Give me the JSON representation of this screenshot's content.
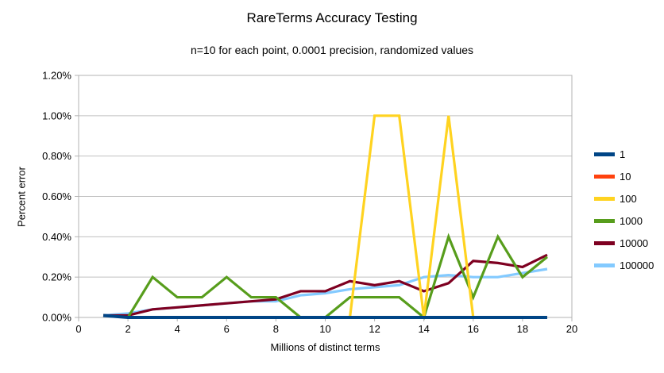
{
  "page": {
    "background": "#ffffff"
  },
  "chart_data": {
    "type": "line",
    "title": "RareTerms Accuracy Testing",
    "subtitle": "n=10 for each point, 0.0001 precision, randomized values",
    "xlabel": "Millions of distinct terms",
    "ylabel": "Percent error",
    "xlim": [
      0,
      20
    ],
    "ylim_percent": [
      0,
      1.2
    ],
    "x_tick_labels": [
      "0",
      "2",
      "4",
      "6",
      "8",
      "10",
      "12",
      "14",
      "16",
      "18",
      "20"
    ],
    "y_tick_labels": [
      "0.00%",
      "0.20%",
      "0.40%",
      "0.60%",
      "0.80%",
      "1.00%",
      "1.20%"
    ],
    "grid": true,
    "legend_position": "right",
    "axis_color": "#b3b3b3",
    "grid_color": "#c0c0c0",
    "x": [
      1,
      2,
      3,
      4,
      5,
      6,
      7,
      8,
      9,
      10,
      11,
      12,
      13,
      14,
      15,
      16,
      17,
      18,
      19
    ],
    "series": [
      {
        "name": "1",
        "color": "#004586",
        "values": [
          0.01,
          0,
          0,
          0,
          0,
          0,
          0,
          0,
          0,
          0,
          0,
          0,
          0,
          0,
          0,
          0,
          0,
          0,
          0
        ]
      },
      {
        "name": "10",
        "color": "#FF420E",
        "values": [
          0.01,
          0,
          0,
          0,
          0,
          0,
          0,
          0,
          0,
          0,
          0,
          0,
          0,
          0,
          0,
          0,
          0,
          0,
          0
        ]
      },
      {
        "name": "100",
        "color": "#FFD320",
        "values": [
          0.01,
          0,
          0,
          0,
          0,
          0,
          0,
          0,
          0,
          0,
          0,
          1.0,
          1.0,
          0,
          1.0,
          0,
          0,
          0,
          0
        ]
      },
      {
        "name": "1000",
        "color": "#579D1C",
        "values": [
          0.01,
          0,
          0.2,
          0.1,
          0.1,
          0.2,
          0.1,
          0.1,
          0,
          0,
          0.1,
          0.1,
          0.1,
          0,
          0.4,
          0.1,
          0.4,
          0.2,
          0.3
        ]
      },
      {
        "name": "10000",
        "color": "#7E0021",
        "values": [
          0.01,
          0.01,
          0.04,
          0.05,
          0.06,
          0.07,
          0.08,
          0.09,
          0.13,
          0.13,
          0.18,
          0.16,
          0.18,
          0.13,
          0.17,
          0.28,
          0.27,
          0.25,
          0.31
        ]
      },
      {
        "name": "100000",
        "color": "#83CAFF",
        "values": [
          0.01,
          0.02,
          0.04,
          0.05,
          0.06,
          0.07,
          0.08,
          0.08,
          0.11,
          0.12,
          0.14,
          0.15,
          0.16,
          0.2,
          0.21,
          0.2,
          0.2,
          0.22,
          0.24
        ]
      }
    ],
    "draw_order": [
      "100000",
      "10000",
      "1000",
      "100",
      "10",
      "1"
    ]
  }
}
